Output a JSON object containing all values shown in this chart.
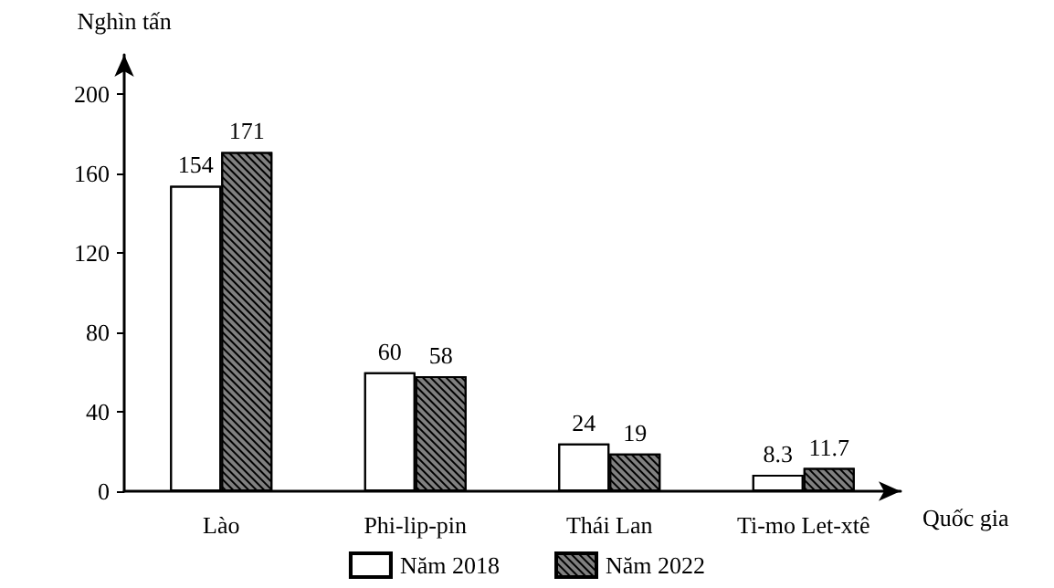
{
  "chart_data": {
    "type": "bar",
    "ylabel": "Nghìn tấn",
    "xlabel": "Quốc gia",
    "categories": [
      "Lào",
      "Phi-lip-pin",
      "Thái Lan",
      "Ti-mo Let-xtê"
    ],
    "series": [
      {
        "name": "Năm 2018",
        "color": "#ffffff",
        "values": [
          154,
          60,
          24,
          8.3
        ]
      },
      {
        "name": "Năm 2022",
        "color": "#808080",
        "values": [
          171,
          58,
          19,
          11.7
        ]
      }
    ],
    "ylim": [
      0,
      220
    ],
    "yticks": [
      0,
      40,
      80,
      120,
      160,
      200
    ],
    "data_labels": true,
    "grid": false,
    "legend": "bottom"
  }
}
